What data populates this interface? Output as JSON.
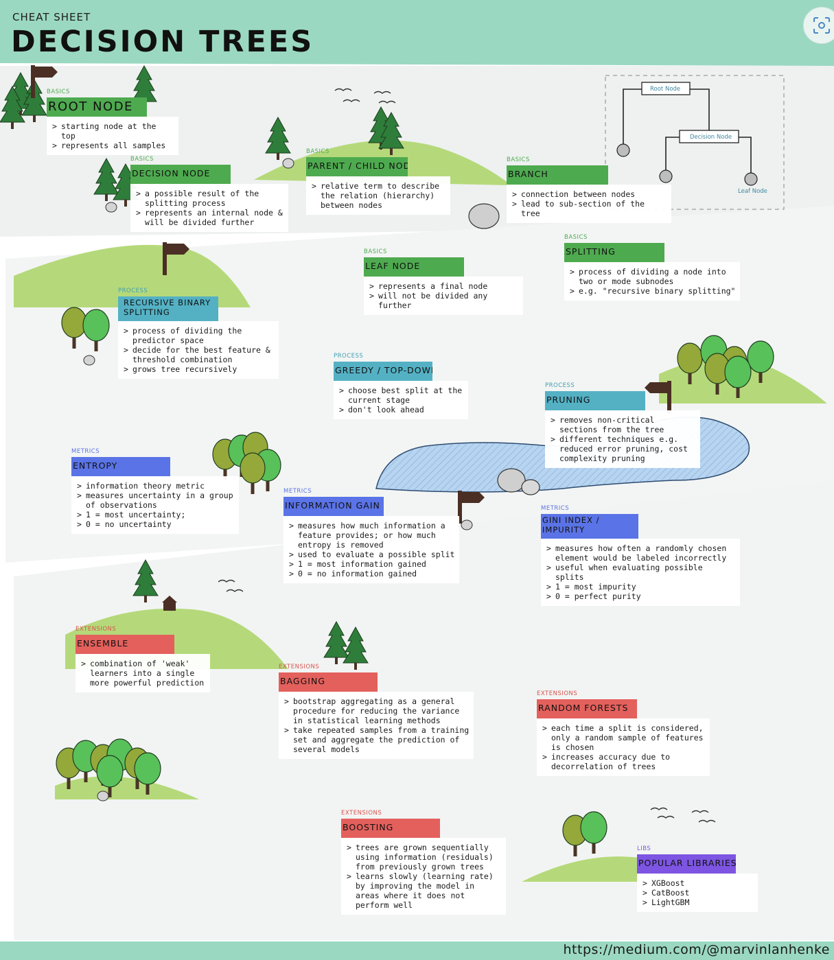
{
  "header": {
    "kicker": "CHEAT SHEET",
    "title": "DECISION TREES"
  },
  "icons": {
    "camera": "screenshot-lens-icon",
    "tree": "pine-tree-icon",
    "signpost": "signpost-icon",
    "bird": "bird-icon",
    "rock": "rock-icon"
  },
  "colors": {
    "header_band": "#9bd8c2",
    "hill": "#b5d97a",
    "lake": "#b7d4f0",
    "basics": "#4eaa4f",
    "process": "#54b1c4",
    "metrics": "#5a73e6",
    "extensions": "#e3605c",
    "libs": "#7d55e2"
  },
  "diagram": {
    "root": "Root Node",
    "decision": "Decision Node",
    "leaf": "Leaf Node"
  },
  "sections": {
    "root_node": {
      "category": "BASICS",
      "title": "ROOT NODE",
      "items": [
        "starting node at the top",
        "represents all samples"
      ]
    },
    "decision_node": {
      "category": "BASICS",
      "title": "DECISION NODE",
      "items": [
        "a possible result of the splitting process",
        "represents an internal node & will be divided further"
      ]
    },
    "parent_child": {
      "category": "BASICS",
      "title": "PARENT / CHILD NODE",
      "items": [
        "relative term to describe the relation (hierarchy) between nodes"
      ]
    },
    "branch": {
      "category": "BASICS",
      "title": "BRANCH",
      "items": [
        "connection between nodes",
        "lead to sub-section of the tree"
      ]
    },
    "leaf_node": {
      "category": "BASICS",
      "title": "LEAF NODE",
      "items": [
        "represents a final node",
        "will not be divided any further"
      ]
    },
    "splitting": {
      "category": "BASICS",
      "title": "SPLITTING",
      "items": [
        "process of dividing a node into two or mode subnodes",
        "e.g. \"recursive binary splitting\""
      ]
    },
    "recursive": {
      "category": "PROCESS",
      "title": "RECURSIVE BINARY SPLITTING",
      "items": [
        "process of dividing the predictor space",
        "decide for the best feature & threshold combination",
        "grows tree recursively"
      ]
    },
    "greedy": {
      "category": "PROCESS",
      "title": "GREEDY / TOP-DOWN",
      "items": [
        "choose best split at the current stage",
        "don't look ahead"
      ]
    },
    "pruning": {
      "category": "PROCESS",
      "title": "PRUNING",
      "items": [
        "removes non-critical sections from the tree",
        "different techniques e.g. reduced error pruning, cost complexity pruning"
      ]
    },
    "entropy": {
      "category": "METRICS",
      "title": "ENTROPY",
      "items": [
        "information theory metric",
        "measures uncertainty in a group of observations",
        "1 = most uncertainty;",
        "0 = no uncertainty"
      ]
    },
    "info_gain": {
      "category": "METRICS",
      "title": "INFORMATION GAIN",
      "items": [
        "measures how much information a feature provides; or how much entropy is removed",
        "used to evaluate a possible split",
        "1 = most information gained",
        "0 = no information gained"
      ]
    },
    "gini": {
      "category": "METRICS",
      "title": "GINI INDEX / IMPURITY",
      "items": [
        "measures how often a randomly chosen element would be labeled incorrectly",
        "useful when evaluating possible splits",
        "1 = most impurity",
        "0 = perfect purity"
      ]
    },
    "ensemble": {
      "category": "EXTENSIONS",
      "title": "ENSEMBLE",
      "items": [
        "combination of 'weak' learners into a single more powerful prediction"
      ]
    },
    "bagging": {
      "category": "EXTENSIONS",
      "title": "BAGGING",
      "items": [
        "bootstrap aggregating as a general procedure for reducing the variance in statistical learning methods",
        "take repeated samples from a training set and aggregate the prediction of several models"
      ]
    },
    "random_forests": {
      "category": "EXTENSIONS",
      "title": "RANDOM FORESTS",
      "items": [
        "each time a split is considered, only a random sample of features is chosen",
        "increases accuracy due to decorrelation of trees"
      ]
    },
    "boosting": {
      "category": "EXTENSIONS",
      "title": "BOOSTING",
      "items": [
        "trees are grown sequentially using information (residuals) from previously grown trees",
        "learns slowly (learning rate) by improving the model in areas where it does not perform well"
      ]
    },
    "libraries": {
      "category": "LIBS",
      "title": "POPULAR LIBRARIES",
      "items": [
        "XGBoost",
        "CatBoost",
        "LightGBM"
      ]
    }
  },
  "footer": {
    "credit": "https://medium.com/@marvinlanhenke"
  }
}
